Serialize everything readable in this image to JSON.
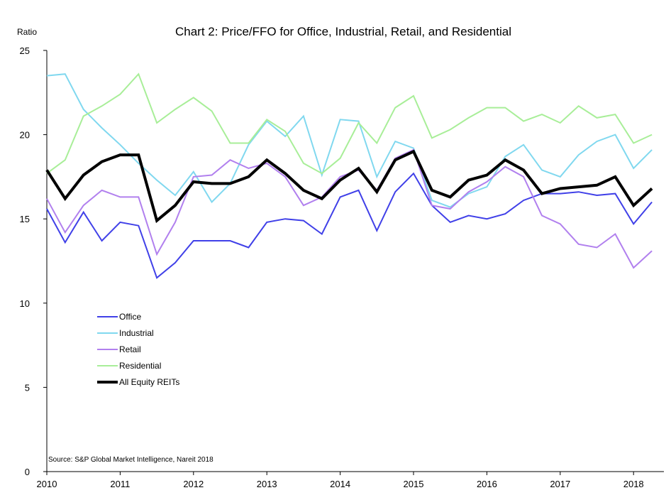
{
  "chart_data": {
    "type": "line",
    "title": "Chart 2: Price/FFO for Office, Industrial, Retail, and Residential",
    "ylabel": "Ratio",
    "xlabel": "",
    "ylim": [
      0,
      25
    ],
    "yticks": [
      0,
      5,
      10,
      15,
      20,
      25
    ],
    "xlim": [
      2010,
      2018.4
    ],
    "xticks": [
      "2010",
      "2011",
      "2012",
      "2013",
      "2014",
      "2015",
      "2016",
      "2017",
      "2018"
    ],
    "grid": false,
    "legend_position": "lower-left",
    "source": "Source: S&P Global Market Intelligence, Nareit 2018",
    "x": [
      2010.0,
      2010.25,
      2010.5,
      2010.75,
      2011.0,
      2011.25,
      2011.5,
      2011.75,
      2012.0,
      2012.25,
      2012.5,
      2012.75,
      2013.0,
      2013.25,
      2013.5,
      2013.75,
      2014.0,
      2014.25,
      2014.5,
      2014.75,
      2015.0,
      2015.25,
      2015.5,
      2015.75,
      2016.0,
      2016.25,
      2016.5,
      2016.75,
      2017.0,
      2017.25,
      2017.5,
      2017.75,
      2018.0,
      2018.25
    ],
    "series": [
      {
        "name": "Office",
        "color": "#4040e8",
        "width": 2,
        "values": [
          15.6,
          13.6,
          15.4,
          13.7,
          14.8,
          14.6,
          11.5,
          12.4,
          13.7,
          13.7,
          13.7,
          13.3,
          14.8,
          15.0,
          14.9,
          14.1,
          16.3,
          16.7,
          14.3,
          16.6,
          17.7,
          15.8,
          14.8,
          15.2,
          15.0,
          15.3,
          16.1,
          16.5,
          16.5,
          16.6,
          16.4,
          16.5,
          14.7,
          16.0
        ]
      },
      {
        "name": "Industrial",
        "color": "#80d8ef",
        "width": 2,
        "values": [
          23.5,
          23.6,
          21.5,
          20.4,
          19.4,
          18.3,
          17.3,
          16.4,
          17.8,
          16.0,
          17.1,
          19.4,
          20.8,
          19.9,
          21.1,
          17.6,
          20.9,
          20.8,
          17.5,
          19.6,
          19.2,
          16.1,
          15.7,
          16.5,
          16.9,
          18.7,
          19.4,
          17.9,
          17.5,
          18.8,
          19.6,
          20.0,
          18.0,
          19.1
        ]
      },
      {
        "name": "Retail",
        "color": "#b180ee",
        "width": 2,
        "values": [
          16.2,
          14.2,
          15.8,
          16.7,
          16.3,
          16.3,
          12.9,
          14.8,
          17.5,
          17.6,
          18.5,
          18.0,
          18.3,
          17.5,
          15.8,
          16.3,
          17.5,
          17.9,
          16.7,
          18.6,
          19.1,
          15.8,
          15.6,
          16.6,
          17.2,
          18.1,
          17.5,
          15.2,
          14.7,
          13.5,
          13.3,
          14.1,
          12.1,
          13.1
        ]
      },
      {
        "name": "Residential",
        "color": "#a8ee98",
        "width": 2,
        "values": [
          17.7,
          18.5,
          21.1,
          21.7,
          22.4,
          23.6,
          20.7,
          21.5,
          22.2,
          21.4,
          19.5,
          19.5,
          20.9,
          20.2,
          18.3,
          17.7,
          18.6,
          20.7,
          19.5,
          21.6,
          22.3,
          19.8,
          20.3,
          21.0,
          21.6,
          21.6,
          20.8,
          21.2,
          20.7,
          21.7,
          21.0,
          21.2,
          19.5,
          20.0
        ]
      },
      {
        "name": "All Equity REITs",
        "color": "#000000",
        "width": 4,
        "values": [
          17.9,
          16.2,
          17.6,
          18.4,
          18.8,
          18.8,
          14.9,
          15.8,
          17.2,
          17.1,
          17.1,
          17.5,
          18.5,
          17.7,
          16.7,
          16.2,
          17.3,
          18.0,
          16.6,
          18.5,
          19.0,
          16.7,
          16.3,
          17.3,
          17.6,
          18.5,
          17.9,
          16.5,
          16.8,
          16.9,
          17.0,
          17.5,
          15.8,
          16.8
        ]
      }
    ]
  }
}
